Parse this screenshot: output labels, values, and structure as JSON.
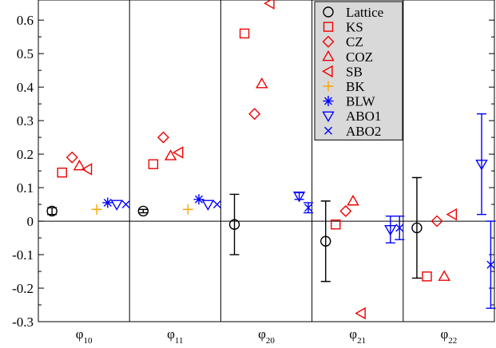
{
  "chart_data": {
    "type": "scatter",
    "title": "",
    "xlabel": "",
    "ylabel": "",
    "categories": [
      {
        "base": "φ",
        "sub": "10"
      },
      {
        "base": "φ",
        "sub": "11"
      },
      {
        "base": "φ",
        "sub": "20"
      },
      {
        "base": "φ",
        "sub": "21"
      },
      {
        "base": "φ",
        "sub": "22"
      }
    ],
    "ylim": [
      -0.3,
      0.66
    ],
    "yticks": [
      "-0.3",
      "-0.2",
      "-0.1",
      "0",
      "0.1",
      "0.2",
      "0.3",
      "0.4",
      "0.5",
      "0.6"
    ],
    "ytick_values": [
      -0.3,
      -0.2,
      -0.1,
      0,
      0.1,
      0.2,
      0.3,
      0.4,
      0.5,
      0.6
    ],
    "zero_line": true,
    "grid": false,
    "legend_position": "top-right",
    "series": [
      {
        "name": "Lattice",
        "marker": "circle",
        "color": "#000000",
        "points": [
          {
            "cat": 0,
            "offset": -0.35,
            "y": 0.03,
            "err": 0.01
          },
          {
            "cat": 1,
            "offset": -0.35,
            "y": 0.03,
            "err": 0.005
          },
          {
            "cat": 2,
            "offset": -0.35,
            "y": -0.01,
            "err": 0.09
          },
          {
            "cat": 3,
            "offset": -0.35,
            "y": -0.06,
            "err": 0.12
          },
          {
            "cat": 4,
            "offset": -0.35,
            "y": -0.02,
            "err": 0.15
          }
        ]
      },
      {
        "name": "KS",
        "marker": "square",
        "color": "#ee0000",
        "points": [
          {
            "cat": 0,
            "offset": -0.24,
            "y": 0.145
          },
          {
            "cat": 1,
            "offset": -0.24,
            "y": 0.17
          },
          {
            "cat": 2,
            "offset": -0.24,
            "y": 0.56
          },
          {
            "cat": 3,
            "offset": -0.24,
            "y": -0.01
          },
          {
            "cat": 4,
            "offset": -0.24,
            "y": -0.165
          }
        ]
      },
      {
        "name": "CZ",
        "marker": "diamond",
        "color": "#ee0000",
        "points": [
          {
            "cat": 0,
            "offset": -0.13,
            "y": 0.19
          },
          {
            "cat": 1,
            "offset": -0.13,
            "y": 0.25
          },
          {
            "cat": 2,
            "offset": -0.13,
            "y": 0.32
          },
          {
            "cat": 3,
            "offset": -0.13,
            "y": 0.03
          },
          {
            "cat": 4,
            "offset": -0.13,
            "y": 0.0
          }
        ]
      },
      {
        "name": "COZ",
        "marker": "triangle-up",
        "color": "#ee0000",
        "points": [
          {
            "cat": 0,
            "offset": -0.05,
            "y": 0.165
          },
          {
            "cat": 1,
            "offset": -0.05,
            "y": 0.195
          },
          {
            "cat": 2,
            "offset": -0.05,
            "y": 0.41
          },
          {
            "cat": 3,
            "offset": -0.05,
            "y": 0.06
          },
          {
            "cat": 4,
            "offset": -0.05,
            "y": -0.165
          }
        ]
      },
      {
        "name": "SB",
        "marker": "triangle-left",
        "color": "#ee0000",
        "points": [
          {
            "cat": 0,
            "offset": 0.04,
            "y": 0.155
          },
          {
            "cat": 1,
            "offset": 0.04,
            "y": 0.205
          },
          {
            "cat": 2,
            "offset": 0.04,
            "y": 0.65
          },
          {
            "cat": 3,
            "offset": 0.04,
            "y": -0.275
          },
          {
            "cat": 4,
            "offset": 0.04,
            "y": 0.02
          }
        ]
      },
      {
        "name": "BK",
        "marker": "plus",
        "color": "#ffa500",
        "points": [
          {
            "cat": 0,
            "offset": 0.14,
            "y": 0.035
          },
          {
            "cat": 1,
            "offset": 0.14,
            "y": 0.035
          }
        ]
      },
      {
        "name": "BLW",
        "marker": "asterisk",
        "color": "#0000ff",
        "points": [
          {
            "cat": 0,
            "offset": 0.26,
            "y": 0.055
          },
          {
            "cat": 1,
            "offset": 0.26,
            "y": 0.065
          }
        ]
      },
      {
        "name": "ABO1",
        "marker": "triangle-down",
        "color": "#0000ff",
        "points": [
          {
            "cat": 0,
            "offset": 0.36,
            "y": 0.05
          },
          {
            "cat": 1,
            "offset": 0.36,
            "y": 0.05
          },
          {
            "cat": 2,
            "offset": 0.36,
            "y": 0.075,
            "err": 0.01
          },
          {
            "cat": 3,
            "offset": 0.36,
            "y": -0.025,
            "err": 0.04
          },
          {
            "cat": 4,
            "offset": 0.36,
            "y": 0.17,
            "err": 0.15
          }
        ]
      },
      {
        "name": "ABO2",
        "marker": "x",
        "color": "#0000ff",
        "points": [
          {
            "cat": 0,
            "offset": 0.46,
            "y": 0.05
          },
          {
            "cat": 1,
            "offset": 0.46,
            "y": 0.05
          },
          {
            "cat": 2,
            "offset": 0.46,
            "y": 0.04,
            "err": 0.015
          },
          {
            "cat": 3,
            "offset": 0.46,
            "y": -0.02,
            "err": 0.035
          },
          {
            "cat": 4,
            "offset": 0.46,
            "y": -0.13,
            "err": 0.13
          }
        ]
      }
    ]
  }
}
